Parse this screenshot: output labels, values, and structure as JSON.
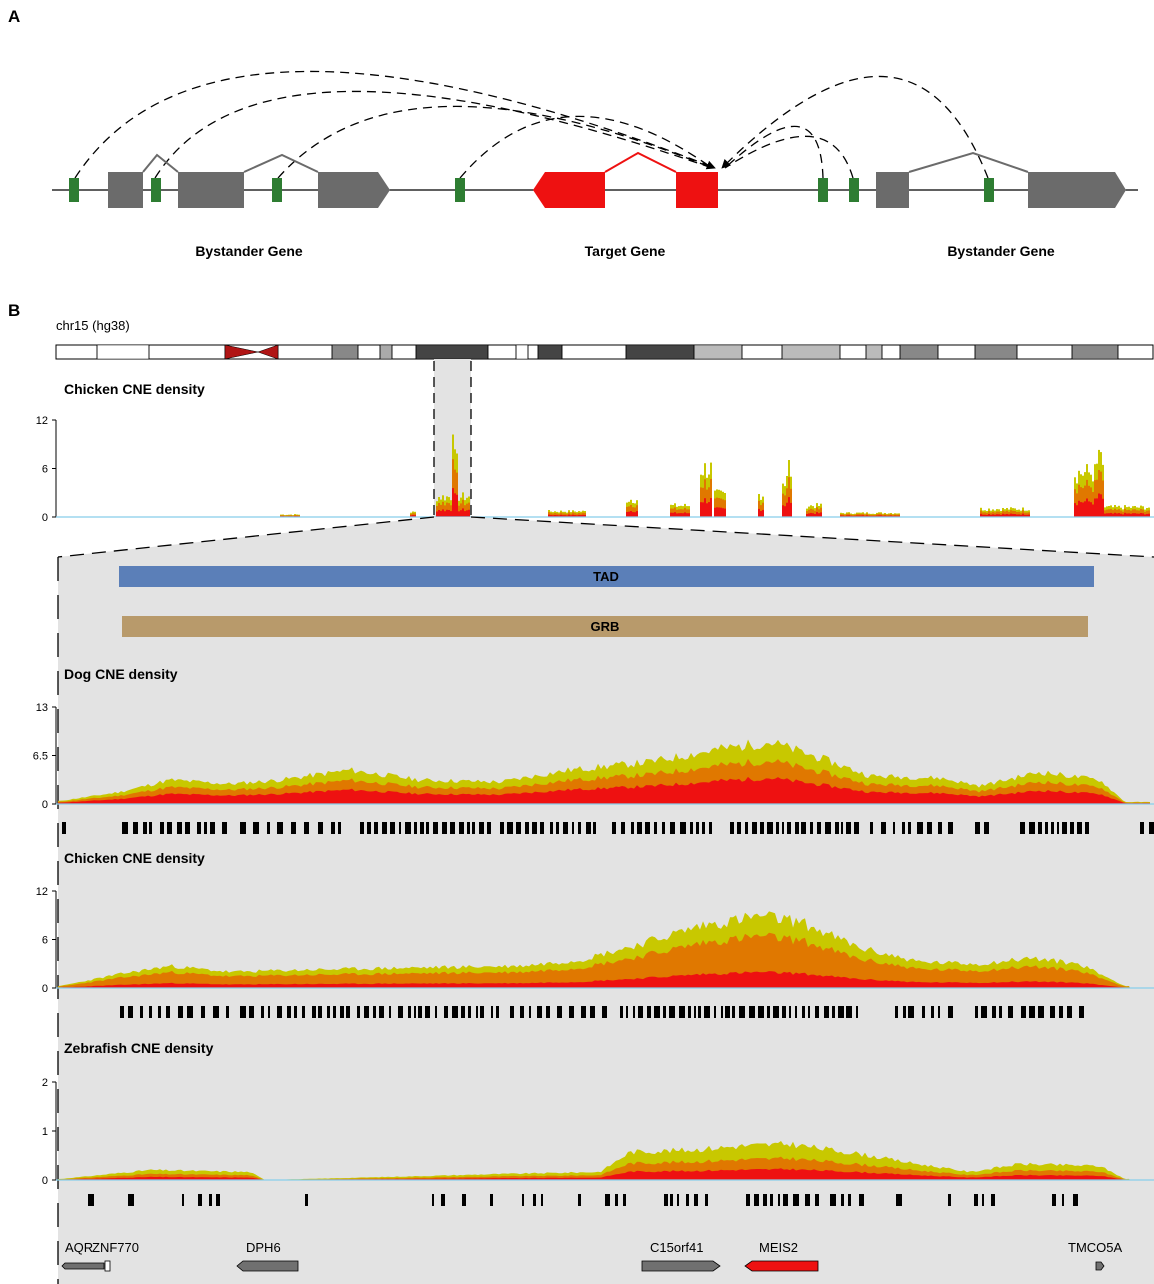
{
  "panel_a": {
    "label": "A",
    "captions": [
      "Bystander Gene",
      "Target Gene",
      "Bystander Gene"
    ]
  },
  "panel_b": {
    "label": "B",
    "chrom_label": "chr15 (hg38)",
    "tad_label": "TAD",
    "grb_label": "GRB",
    "tracks": [
      {
        "title": "Chicken CNE density",
        "ticks": [
          "12",
          "6",
          "0"
        ]
      },
      {
        "title": "Dog CNE density",
        "ticks": [
          "13",
          "6.5",
          "0"
        ]
      },
      {
        "title": "Chicken CNE density",
        "ticks": [
          "12",
          "6",
          "0"
        ]
      },
      {
        "title": "Zebrafish CNE density",
        "ticks": [
          "2",
          "1",
          "0"
        ]
      }
    ],
    "genes": [
      {
        "name": "AQR",
        "color": "#707070"
      },
      {
        "name": "ZNF770",
        "color": "#707070"
      },
      {
        "name": "DPH6",
        "color": "#707070"
      },
      {
        "name": "C15orf41",
        "color": "#707070"
      },
      {
        "name": "MEIS2",
        "color": "#ee1111"
      },
      {
        "name": "TMCO5A",
        "color": "#707070"
      }
    ]
  },
  "colors": {
    "conserved_element": "#2e7d32",
    "bystander_gene": "#6b6b6b",
    "target_gene": "#ee1111",
    "tad": "#5b7fb8",
    "grb": "#b89a6b",
    "density_low": "#c8c800",
    "density_mid": "#e07800",
    "density_high": "#ee1111",
    "baseline": "#87ceeb",
    "zoom_background": "#e3e3e3"
  }
}
